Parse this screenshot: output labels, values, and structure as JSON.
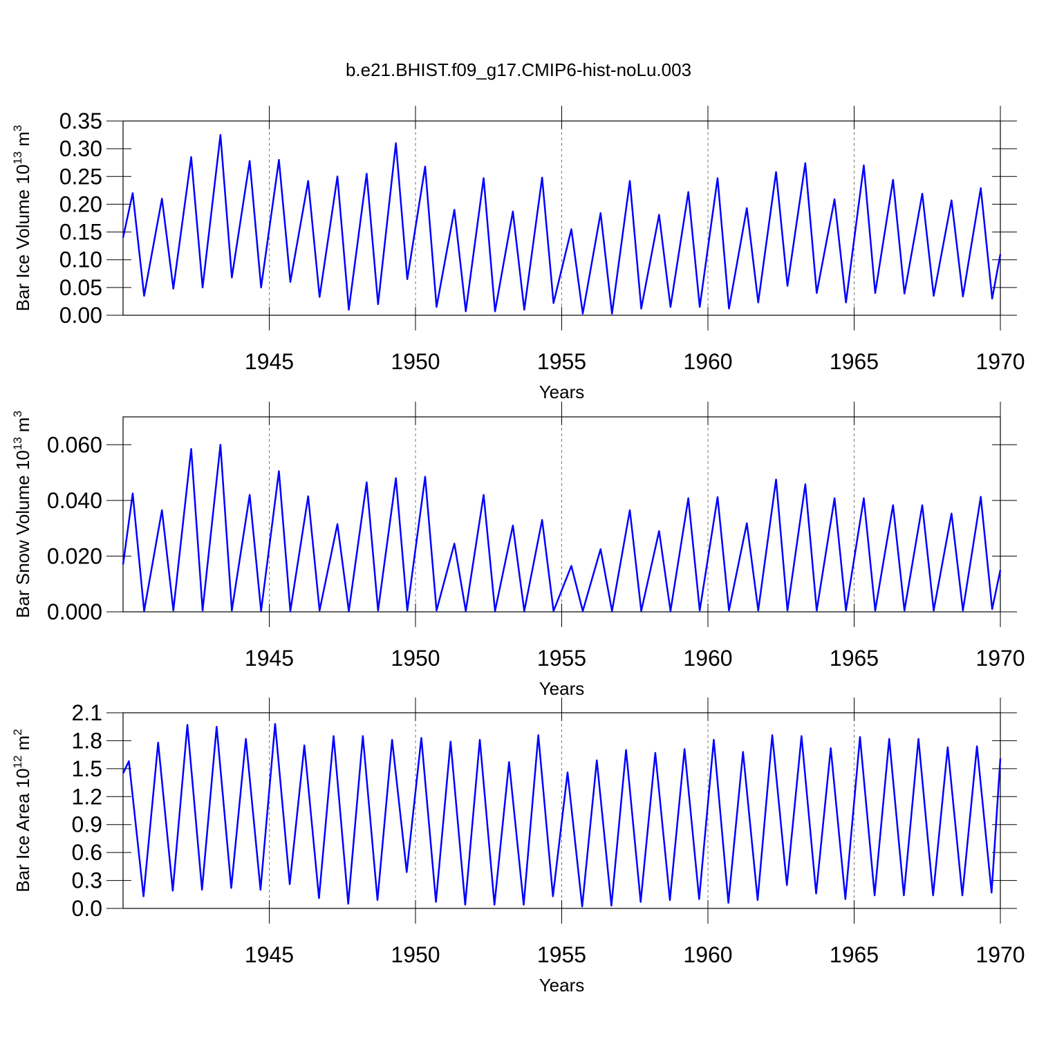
{
  "title": "b.e21.BHIST.f09_g17.CMIP6-hist-noLu.003",
  "chart_data": [
    {
      "type": "line",
      "xlabel": "Years",
      "ylabel_parts": [
        "Bar Ice Volume 10",
        "13",
        "m",
        "3"
      ],
      "xlim": [
        1940,
        1970
      ],
      "xticks": [
        1945,
        1950,
        1955,
        1960,
        1965,
        1970
      ],
      "ylim": [
        0,
        0.35
      ],
      "yticks": [
        {
          "value": 0,
          "label": "0.00"
        },
        0.05,
        {
          "value": 0.1,
          "label": "0.10"
        },
        0.15,
        {
          "value": 0.2,
          "label": "0.20"
        },
        0.25,
        {
          "value": 0.3,
          "label": "0.30"
        },
        0.35
      ],
      "grid": true,
      "x": [
        1940,
        1940.33,
        1940.72,
        1941.33,
        1941.72,
        1942.33,
        1942.72,
        1943.33,
        1943.72,
        1944.33,
        1944.72,
        1945.33,
        1945.72,
        1946.33,
        1946.72,
        1947.33,
        1947.72,
        1948.33,
        1948.72,
        1949.33,
        1949.72,
        1950.33,
        1950.72,
        1951.33,
        1951.72,
        1952.33,
        1952.72,
        1953.33,
        1953.72,
        1954.33,
        1954.72,
        1955.33,
        1955.72,
        1956.33,
        1956.72,
        1957.33,
        1957.72,
        1958.33,
        1958.72,
        1959.33,
        1959.72,
        1960.33,
        1960.72,
        1961.33,
        1961.72,
        1962.33,
        1962.72,
        1963.33,
        1963.72,
        1964.33,
        1964.72,
        1965.33,
        1965.72,
        1966.33,
        1966.72,
        1967.33,
        1967.72,
        1968.33,
        1968.72,
        1969.33,
        1969.72,
        1970
      ],
      "series": [
        {
          "color": "#0000ff",
          "values": [
            0.14,
            0.22,
            0.035,
            0.21,
            0.048,
            0.285,
            0.05,
            0.325,
            0.068,
            0.278,
            0.05,
            0.28,
            0.06,
            0.242,
            0.033,
            0.25,
            0.01,
            0.255,
            0.02,
            0.31,
            0.065,
            0.268,
            0.015,
            0.19,
            0.007,
            0.247,
            0.007,
            0.187,
            0.01,
            0.248,
            0.022,
            0.155,
            0.003,
            0.184,
            0.003,
            0.242,
            0.012,
            0.181,
            0.015,
            0.222,
            0.015,
            0.247,
            0.012,
            0.193,
            0.023,
            0.258,
            0.053,
            0.274,
            0.04,
            0.209,
            0.023,
            0.27,
            0.04,
            0.244,
            0.039,
            0.219,
            0.035,
            0.207,
            0.034,
            0.229,
            0.03,
            0.11
          ]
        }
      ]
    },
    {
      "type": "line",
      "xlabel": "Years",
      "ylabel_parts": [
        "Bar Snow Volume 10",
        "13",
        "m",
        "3"
      ],
      "xlim": [
        1940,
        1970
      ],
      "xticks": [
        1945,
        1950,
        1955,
        1960,
        1965,
        1970
      ],
      "ylim": [
        0,
        0.07
      ],
      "yticks": [
        {
          "value": 0,
          "label": "0.000"
        },
        {
          "value": 0.02,
          "label": "0.020"
        },
        {
          "value": 0.04,
          "label": "0.040"
        },
        {
          "value": 0.06,
          "label": "0.060"
        }
      ],
      "grid": true,
      "x": [
        1940,
        1940.33,
        1940.72,
        1941.33,
        1941.72,
        1942.33,
        1942.72,
        1943.33,
        1943.72,
        1944.33,
        1944.72,
        1945.33,
        1945.72,
        1946.33,
        1946.72,
        1947.33,
        1947.72,
        1948.33,
        1948.72,
        1949.33,
        1949.72,
        1950.33,
        1950.72,
        1951.33,
        1951.72,
        1952.33,
        1952.72,
        1953.33,
        1953.72,
        1954.33,
        1954.72,
        1955.33,
        1955.72,
        1956.33,
        1956.72,
        1957.33,
        1957.72,
        1958.33,
        1958.72,
        1959.33,
        1959.72,
        1960.33,
        1960.72,
        1961.33,
        1961.72,
        1962.33,
        1962.72,
        1963.33,
        1963.72,
        1964.33,
        1964.72,
        1965.33,
        1965.72,
        1966.33,
        1966.72,
        1967.33,
        1967.72,
        1968.33,
        1968.72,
        1969.33,
        1969.72,
        1970
      ],
      "series": [
        {
          "color": "#0000ff",
          "values": [
            0.017,
            0.0425,
            0.0003,
            0.0365,
            0.0005,
            0.0585,
            0.0005,
            0.06,
            0.0005,
            0.042,
            0.0003,
            0.0505,
            0.0003,
            0.0415,
            0.0005,
            0.0315,
            0.0003,
            0.0465,
            0.0005,
            0.048,
            0.0005,
            0.0485,
            0.0005,
            0.0245,
            0.0003,
            0.042,
            0.0003,
            0.031,
            0.0003,
            0.033,
            0.0003,
            0.0165,
            0.0003,
            0.0225,
            0.0003,
            0.0365,
            0.0003,
            0.029,
            0.0003,
            0.0408,
            0.0005,
            0.0412,
            0.0005,
            0.0318,
            0.0005,
            0.0475,
            0.0005,
            0.0458,
            0.0005,
            0.0408,
            0.0005,
            0.0408,
            0.0005,
            0.0383,
            0.0005,
            0.0383,
            0.0005,
            0.0353,
            0.0005,
            0.0413,
            0.001,
            0.015
          ]
        }
      ]
    },
    {
      "type": "line",
      "xlabel": "Years",
      "ylabel_parts": [
        "Bar Ice Area 10",
        "12",
        "m",
        "2"
      ],
      "xlim": [
        1940,
        1970
      ],
      "xticks": [
        1945,
        1950,
        1955,
        1960,
        1965,
        1970
      ],
      "ylim": [
        0,
        2.1
      ],
      "yticks": [
        {
          "value": 0,
          "label": "0.0"
        },
        0.3,
        0.6,
        0.9,
        1.2,
        1.5,
        1.8,
        2.1
      ],
      "grid": true,
      "x": [
        1940,
        1940.2,
        1940.7,
        1941.2,
        1941.7,
        1942.2,
        1942.7,
        1943.2,
        1943.7,
        1944.2,
        1944.7,
        1945.2,
        1945.7,
        1946.2,
        1946.7,
        1947.2,
        1947.7,
        1948.2,
        1948.7,
        1949.2,
        1949.7,
        1950.2,
        1950.7,
        1951.2,
        1951.7,
        1952.2,
        1952.7,
        1953.2,
        1953.7,
        1954.2,
        1954.7,
        1955.2,
        1955.7,
        1956.2,
        1956.7,
        1957.2,
        1957.7,
        1958.2,
        1958.7,
        1959.2,
        1959.7,
        1960.2,
        1960.7,
        1961.2,
        1961.7,
        1962.2,
        1962.7,
        1963.2,
        1963.7,
        1964.2,
        1964.7,
        1965.2,
        1965.7,
        1966.2,
        1966.7,
        1967.2,
        1967.7,
        1968.2,
        1968.7,
        1969.2,
        1969.7,
        1970
      ],
      "series": [
        {
          "color": "#0000ff",
          "values": [
            1.45,
            1.58,
            0.13,
            1.78,
            0.19,
            1.97,
            0.2,
            1.95,
            0.22,
            1.82,
            0.2,
            1.98,
            0.26,
            1.75,
            0.11,
            1.85,
            0.05,
            1.85,
            0.09,
            1.81,
            0.39,
            1.83,
            0.07,
            1.79,
            0.04,
            1.81,
            0.04,
            1.57,
            0.04,
            1.86,
            0.13,
            1.46,
            0.02,
            1.59,
            0.03,
            1.7,
            0.07,
            1.67,
            0.09,
            1.71,
            0.1,
            1.81,
            0.06,
            1.68,
            0.09,
            1.86,
            0.25,
            1.85,
            0.16,
            1.72,
            0.1,
            1.84,
            0.14,
            1.82,
            0.14,
            1.82,
            0.14,
            1.73,
            0.14,
            1.74,
            0.17,
            1.61
          ]
        }
      ]
    }
  ]
}
